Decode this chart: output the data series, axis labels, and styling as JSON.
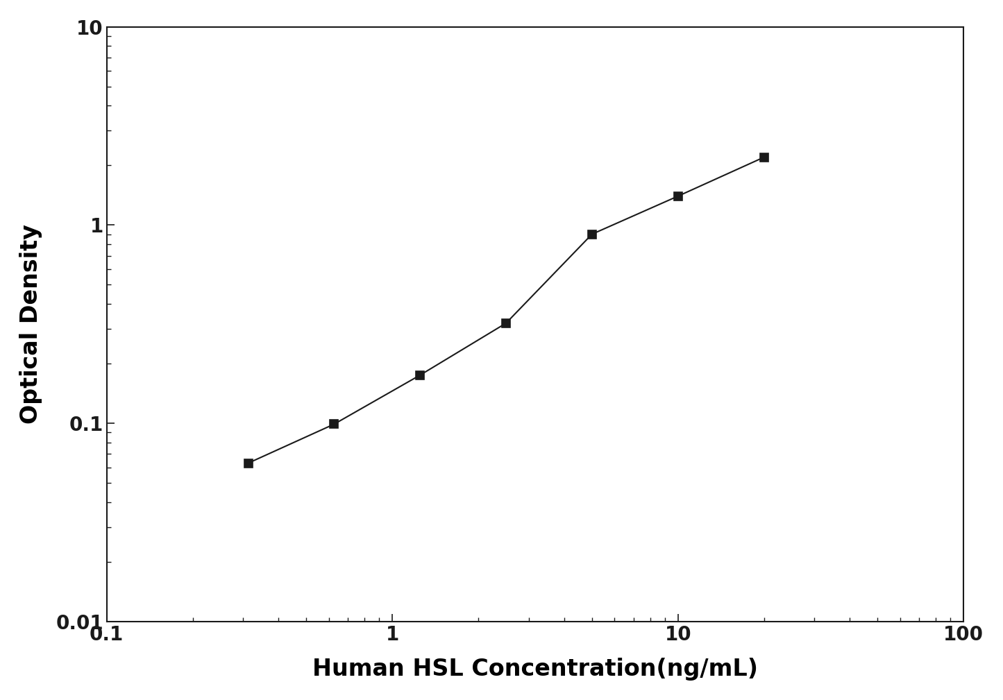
{
  "x": [
    0.313,
    0.625,
    1.25,
    2.5,
    5.0,
    10.0,
    20.0
  ],
  "y": [
    0.063,
    0.099,
    0.175,
    0.32,
    0.9,
    1.4,
    2.2
  ],
  "xlabel": "Human HSL Concentration(ng/mL)",
  "ylabel": "Optical Density",
  "xlim": [
    0.1,
    100
  ],
  "ylim": [
    0.01,
    10
  ],
  "xticks": [
    0.1,
    1,
    10,
    100
  ],
  "yticks": [
    0.01,
    0.1,
    1,
    10
  ],
  "xtick_labels": [
    "0.1",
    "1",
    "10",
    "100"
  ],
  "ytick_labels": [
    "0.01",
    "0.1",
    "1",
    "10"
  ],
  "line_color": "#1a1a1a",
  "marker": "s",
  "marker_color": "#1a1a1a",
  "marker_size": 9,
  "linewidth": 1.5,
  "xlabel_fontsize": 24,
  "ylabel_fontsize": 24,
  "tick_labelsize": 20,
  "background_color": "#ffffff",
  "spine_color": "#1a1a1a"
}
